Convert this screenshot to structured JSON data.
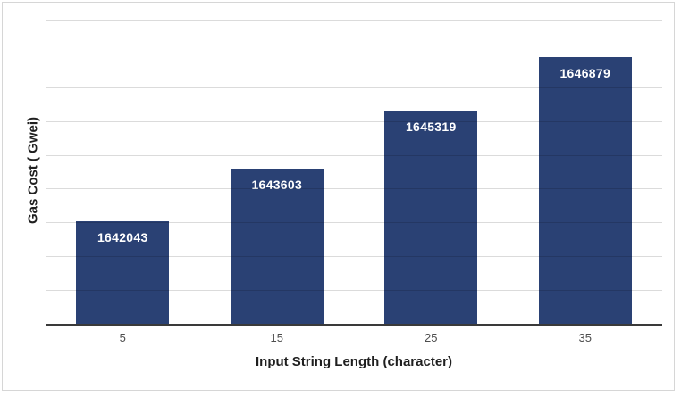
{
  "chart_data": {
    "type": "bar",
    "title": "",
    "xlabel": "Input String Length (character)",
    "ylabel": "Gas Cost ( Gwei)",
    "categories": [
      "5",
      "15",
      "25",
      "35"
    ],
    "values": [
      1642043,
      1643603,
      1645319,
      1646879
    ],
    "data_labels": [
      "1642043",
      "1643603",
      "1645319",
      "1646879"
    ],
    "ylim": [
      1639000,
      1648000
    ],
    "gridline_step": 1000,
    "grid": "horizontal-only",
    "y_tick_labels_visible": false,
    "legend_position": "none",
    "bar_color": "#2a4174",
    "data_label_color": "#ffffff",
    "axis_line_color": "#3a3a3a",
    "gridline_color": "#dbdbdb",
    "tick_label_color": "#4d4d4d",
    "border_color": "#d6d6d6"
  }
}
